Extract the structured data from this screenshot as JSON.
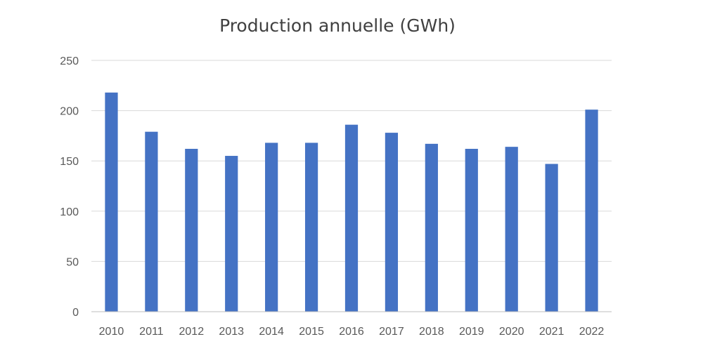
{
  "chart_data": {
    "type": "bar",
    "title": "Production annuelle (GWh)",
    "xlabel": "",
    "ylabel": "",
    "categories": [
      "2010",
      "2011",
      "2012",
      "2013",
      "2014",
      "2015",
      "2016",
      "2017",
      "2018",
      "2019",
      "2020",
      "2021",
      "2022"
    ],
    "values": [
      218,
      179,
      162,
      155,
      168,
      168,
      186,
      178,
      167,
      162,
      164,
      147,
      201
    ],
    "ylim": [
      0,
      250
    ],
    "yticks": [
      0,
      50,
      100,
      150,
      200,
      250
    ],
    "grid": true,
    "legend": "none",
    "bar_color": "#4472c4"
  }
}
